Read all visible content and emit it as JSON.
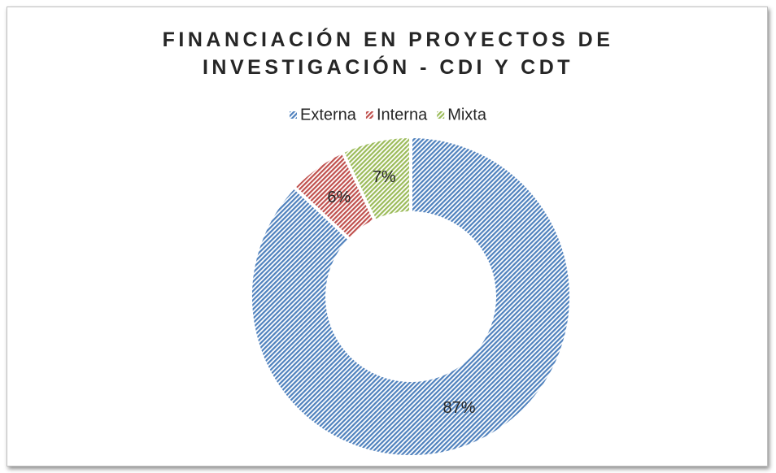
{
  "chart_data": {
    "type": "donut",
    "title": "FINANCIACIÓN EN PROYECTOS DE INVESTIGACIÓN - CDI Y CDT",
    "categories": [
      "Externa",
      "Interna",
      "Mixta"
    ],
    "values": [
      87,
      6,
      7
    ],
    "value_labels": [
      "87%",
      "6%",
      "7%"
    ],
    "colors": [
      "#4f81bd",
      "#c0504d",
      "#9bbb59"
    ],
    "legend": "top"
  }
}
